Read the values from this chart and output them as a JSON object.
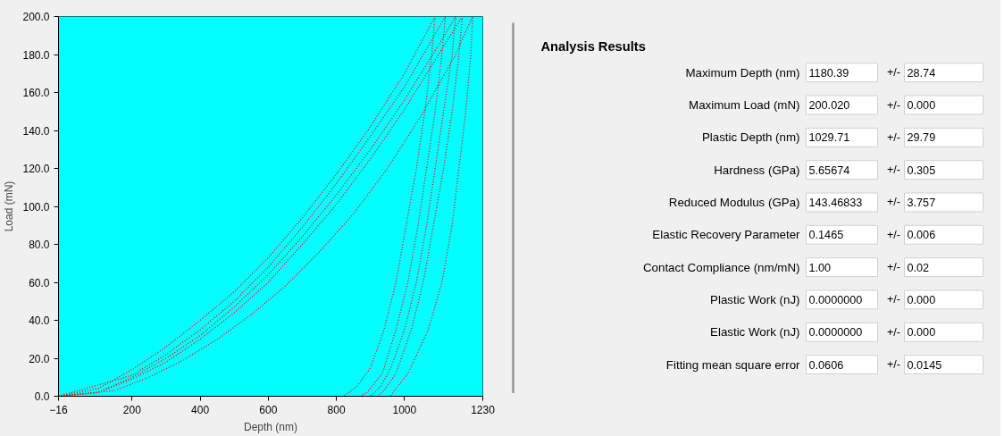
{
  "chart_data": [
    {
      "type": "line",
      "xlabel": "Depth (nm)",
      "ylabel": "Load (mN)",
      "xlim": [
        -16,
        1230
      ],
      "ylim": [
        0,
        200
      ],
      "xticks": [
        -16,
        200,
        400,
        600,
        800,
        1000,
        1230
      ],
      "yticks": [
        {
          "value": 0,
          "label": "0.0"
        },
        {
          "value": 20,
          "label": "20.0"
        },
        {
          "value": 40,
          "label": "40.0"
        },
        {
          "value": 60,
          "label": "60.0"
        },
        {
          "value": 80,
          "label": "80.0"
        },
        {
          "value": 100,
          "label": "100.0"
        },
        {
          "value": 120,
          "label": "120.0"
        },
        {
          "value": 140,
          "label": "140.0"
        },
        {
          "value": 160,
          "label": "160.0"
        },
        {
          "value": 180,
          "label": "180.0"
        },
        {
          "value": 200,
          "label": "200.0"
        }
      ],
      "grid": false,
      "marker": "none",
      "line_style": "dotted",
      "series": [
        {
          "color": "#ff0000",
          "x": [
            -16,
            100,
            200,
            300,
            400,
            500,
            600,
            700,
            800,
            900,
            1000,
            1090,
            1080,
            1060,
            1035,
            1005,
            975,
            940,
            900,
            860,
            820
          ],
          "values": [
            0,
            4,
            14,
            26,
            40,
            55,
            73,
            94,
            117,
            142,
            170,
            200,
            180,
            150,
            120,
            90,
            60,
            35,
            15,
            5,
            0
          ]
        },
        {
          "color": "#ff0000",
          "x": [
            -16,
            200,
            300,
            400,
            500,
            600,
            700,
            800,
            900,
            1000,
            1120,
            1110,
            1090,
            1065,
            1040,
            1010,
            975,
            935,
            890,
            870
          ],
          "values": [
            0,
            11,
            22,
            35,
            50,
            68,
            89,
            112,
            137,
            163,
            200,
            180,
            150,
            120,
            90,
            60,
            35,
            12,
            2,
            0
          ]
        },
        {
          "color": "#ff0000",
          "x": [
            -16,
            100,
            200,
            300,
            400,
            500,
            600,
            700,
            800,
            900,
            1000,
            1100,
            1150,
            1140,
            1115,
            1090,
            1065,
            1035,
            1000,
            960,
            930,
            900
          ],
          "values": [
            0,
            2,
            10,
            20,
            32,
            47,
            64,
            84,
            106,
            130,
            156,
            185,
            200,
            180,
            150,
            120,
            90,
            60,
            35,
            15,
            5,
            0
          ]
        },
        {
          "color": "#ff0000",
          "x": [
            -16,
            100,
            200,
            300,
            400,
            500,
            600,
            700,
            800,
            900,
            1000,
            1100,
            1170,
            1160,
            1140,
            1115,
            1085,
            1055,
            1020,
            975,
            940,
            920
          ],
          "values": [
            0,
            2,
            9,
            18,
            30,
            44,
            60,
            80,
            101,
            125,
            151,
            180,
            200,
            180,
            150,
            120,
            90,
            60,
            35,
            12,
            3,
            0
          ]
        },
        {
          "color": "#ff0000",
          "x": [
            -16,
            150,
            250,
            350,
            450,
            550,
            650,
            750,
            850,
            950,
            1050,
            1150,
            1200,
            1195,
            1180,
            1160,
            1140,
            1110,
            1070,
            1010,
            970,
            960
          ],
          "values": [
            0,
            3,
            10,
            19,
            30,
            43,
            58,
            76,
            96,
            120,
            148,
            180,
            200,
            180,
            150,
            120,
            90,
            60,
            35,
            12,
            3,
            0
          ]
        }
      ]
    },
    {
      "type": "other",
      "title": "Analysis Results",
      "annotations": [
        "Maximum Depth (nm)",
        "1180.39",
        "+/-",
        "28.74",
        "Maximum Load (mN)",
        "200.020",
        "+/-",
        "0.000",
        "Plastic Depth (nm)",
        "1029.71",
        "+/-",
        "29.79",
        "Hardness (GPa)",
        "5.65674",
        "+/-",
        "0.305",
        "Reduced Modulus (GPa)",
        "143.46833",
        "+/-",
        "3.757",
        "Elastic Recovery Parameter",
        "0.1465",
        "+/-",
        "0.006",
        "Contact Compliance (nm/mN)",
        "1.00",
        "+/-",
        "0.02",
        "Plastic Work (nJ)",
        "0.0000000",
        "+/-",
        "0.000",
        "Elastic Work (nJ)",
        "0.0000000",
        "+/-",
        "0.000",
        "Fitting mean square error",
        "0.0606",
        "+/-",
        "0.0145"
      ]
    }
  ]
}
